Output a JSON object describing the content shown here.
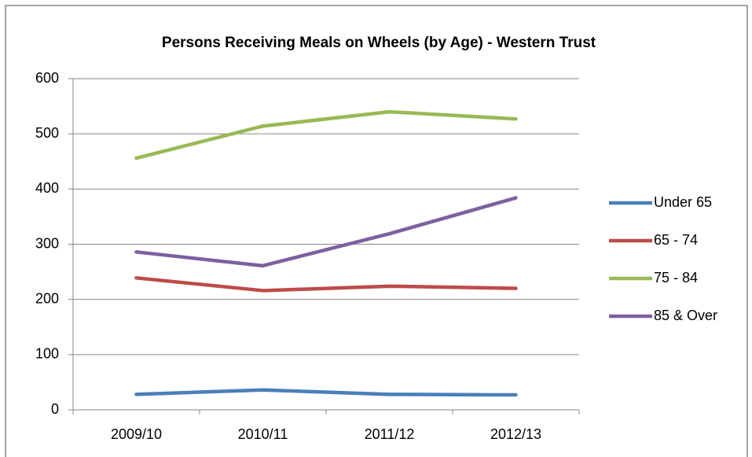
{
  "chart_data": {
    "type": "line",
    "title": "Persons Receiving Meals on Wheels  (by Age) - Western Trust",
    "categories": [
      "2009/10",
      "2010/11",
      "2011/12",
      "2012/13"
    ],
    "series": [
      {
        "name": "Under 65",
        "color": "#4a7ebb",
        "values": [
          28,
          36,
          28,
          27
        ]
      },
      {
        "name": "65 - 74",
        "color": "#be4b48",
        "values": [
          239,
          216,
          224,
          220
        ]
      },
      {
        "name": "75 - 84",
        "color": "#98b954",
        "values": [
          456,
          514,
          540,
          527
        ]
      },
      {
        "name": "85 & Over",
        "color": "#7d60a0",
        "values": [
          286,
          261,
          319,
          384
        ]
      }
    ],
    "ylim": [
      0,
      600
    ],
    "yticks": [
      0,
      100,
      200,
      300,
      400,
      500,
      600
    ],
    "grid": true,
    "legend": "right"
  }
}
